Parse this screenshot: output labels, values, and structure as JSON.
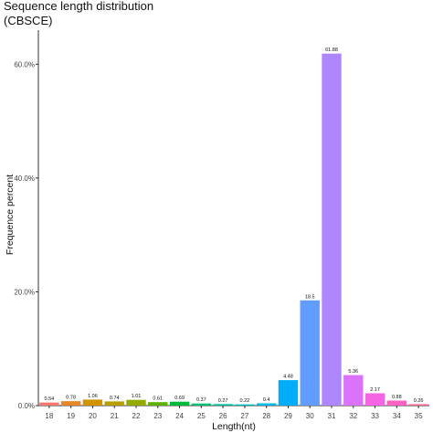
{
  "chart_data": {
    "type": "bar",
    "title": "Sequence length distribution",
    "subtitle": "(CBSCE)",
    "xlabel": "Length(nt)",
    "ylabel": "Frequence percent",
    "categories": [
      "18",
      "19",
      "20",
      "21",
      "22",
      "23",
      "24",
      "25",
      "26",
      "27",
      "28",
      "29",
      "30",
      "31",
      "32",
      "33",
      "34",
      "35"
    ],
    "values": [
      0.54,
      0.78,
      1.06,
      0.74,
      1.01,
      0.61,
      0.69,
      0.37,
      0.27,
      0.22,
      0.4,
      4.48,
      18.5,
      61.88,
      5.36,
      2.17,
      0.88,
      0.26
    ],
    "data_labels": [
      "0.54",
      "0.78",
      "1.06",
      "0.74",
      "1.01",
      "0.61",
      "0.69",
      "0.37",
      "0.27",
      "0.22",
      "0.4",
      "4.48",
      "18.5",
      "61.88",
      "5.36",
      "2.17",
      "0.88",
      "0.26"
    ],
    "colors": [
      "#F8766D",
      "#E88526",
      "#D39200",
      "#B79F00",
      "#93AA00",
      "#5EB300",
      "#00BA38",
      "#00BF74",
      "#00C19F",
      "#00BFC4",
      "#00B9E3",
      "#00ADFA",
      "#619CFF",
      "#AE87FF",
      "#DB72FB",
      "#F564E3",
      "#FF61C3",
      "#FF6C91"
    ],
    "ylim": [
      0,
      66
    ],
    "yticks": [
      0,
      20,
      40,
      60
    ],
    "ytick_labels": [
      "0.0%",
      "20.0%",
      "40.0%",
      "60.0%"
    ],
    "grid": false
  }
}
